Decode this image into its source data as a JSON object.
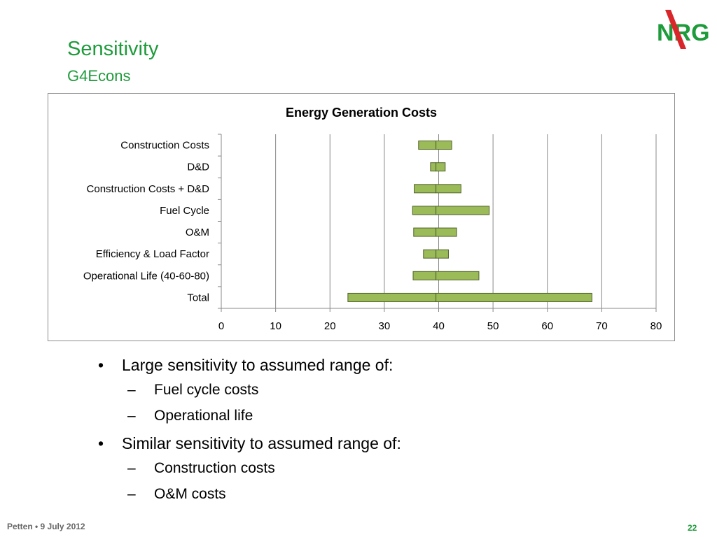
{
  "slide": {
    "title": "Sensitivity",
    "subtitle": "G4Econs",
    "logo_text": "NRG",
    "footer_left": "Petten • 9 July 2012",
    "page_number": "22",
    "brand_color": "#1e9b3b",
    "logo_accent_color": "#d9262b"
  },
  "bullets": [
    {
      "text": "Large sensitivity to assumed range of:",
      "sub": [
        "Fuel cycle costs",
        "Operational life"
      ]
    },
    {
      "text": "Similar sensitivity to assumed range of:",
      "sub": [
        "Construction costs",
        "O&M costs"
      ]
    }
  ],
  "bullet_mark": "•",
  "sub_bullet_mark": "–",
  "chart_data": {
    "type": "bar",
    "orientation": "horizontal",
    "style": "tornado",
    "title": "Energy Generation Costs",
    "xlabel": "",
    "ylabel": "",
    "xlim": [
      0,
      80
    ],
    "xticks": [
      0,
      10,
      20,
      30,
      40,
      50,
      60,
      70,
      80
    ],
    "grid": "vertical",
    "legend": "none",
    "base_value": 39.5,
    "bar_color": "#9bbb59",
    "bar_edge_color": "#4f6228",
    "categories": [
      "Construction Costs",
      "D&D",
      "Construction Costs + D&D",
      "Fuel Cycle",
      "O&M",
      "Efficiency & Load Factor",
      "Operational Life (40-60-80)",
      "Total"
    ],
    "low": [
      36.3,
      38.5,
      35.5,
      35.2,
      35.4,
      37.2,
      35.3,
      23.3
    ],
    "high": [
      42.4,
      41.2,
      44.1,
      49.3,
      43.3,
      41.8,
      47.4,
      68.2
    ]
  }
}
